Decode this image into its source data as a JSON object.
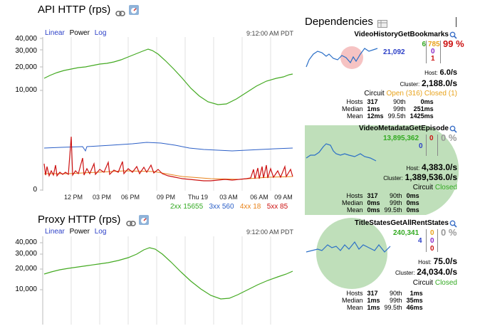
{
  "api": {
    "title": "API HTTP (rps)",
    "toggles": [
      "Linear",
      "Power",
      "Log"
    ],
    "timestamp": "9:12:00 AM PDT",
    "yticks": [
      "40,000",
      "30,000",
      "20,000",
      "10,000",
      "0"
    ],
    "xticks": [
      "12 PM",
      "03 PM",
      "06 PM",
      "09 PM",
      "Thu 19",
      "03 AM",
      "06 AM",
      "09 AM"
    ],
    "legend": [
      {
        "label": "2xx",
        "value": "15655",
        "color": "#33aa22"
      },
      {
        "label": "3xx",
        "value": "560",
        "color": "#2b5fc7"
      },
      {
        "label": "4xx",
        "value": "18",
        "color": "#e8831a"
      },
      {
        "label": "5xx",
        "value": "85",
        "color": "#cc1111"
      }
    ]
  },
  "proxy": {
    "title": "Proxy HTTP (rps)",
    "toggles": [
      "Linear",
      "Power",
      "Log"
    ],
    "timestamp": "9:12:00 AM PDT",
    "yticks": [
      "40,000",
      "30,000",
      "20,000",
      "10,000"
    ]
  },
  "deps": {
    "title": "Dependencies",
    "items": [
      {
        "name": "VideoHistoryGetBookmarks",
        "success": "21,092",
        "c1": "6",
        "c2": "785",
        "c3": "0",
        "c4": "1",
        "percent": "99 %",
        "host": "6.0/s",
        "cluster": "2,188.0/s",
        "circuit_label": "Circuit",
        "circuit": "Open (316) Closed (1)",
        "circuit_color": "#e8a21a",
        "hosts_label": "Hosts",
        "hosts": "317",
        "median_label": "Median",
        "median": "1ms",
        "mean_label": "Mean",
        "mean": "12ms",
        "p90_label": "90th",
        "p90": "0ms",
        "p99_label": "99th",
        "p99": "251ms",
        "p995_label": "99.5th",
        "p995": "1425ms"
      },
      {
        "name": "VideoMetadataGetEpisode",
        "success": "13,895,362",
        "c1": "0",
        "c2": "0",
        "percent": "0 %",
        "host": "4,383.0/s",
        "cluster": "1,389,536.0/s",
        "circuit_label": "Circuit",
        "circuit": "Closed",
        "circuit_color": "#33aa22",
        "hosts_label": "Hosts",
        "hosts": "317",
        "median_label": "Median",
        "median": "0ms",
        "mean_label": "Mean",
        "mean": "0ms",
        "p90_label": "90th",
        "p90": "0ms",
        "p99_label": "99th",
        "p99": "0ms",
        "p995_label": "99.5th",
        "p995": "0ms"
      },
      {
        "name": "TitleStatesGetAllRentStates",
        "success": "240,341",
        "c1": "4",
        "c2": "0",
        "c3": "0",
        "c4": "0",
        "percent": "0 %",
        "host": "75.0/s",
        "cluster": "24,034.0/s",
        "circuit_label": "Circuit",
        "circuit": "Closed",
        "circuit_color": "#33aa22",
        "hosts_label": "Hosts",
        "hosts": "317",
        "median_label": "Median",
        "median": "1ms",
        "mean_label": "Mean",
        "mean": "1ms",
        "p90_label": "90th",
        "p90": "1ms",
        "p99_label": "99th",
        "p99": "35ms",
        "p995_label": "99.5th",
        "p995": "46ms"
      }
    ],
    "labels": {
      "host": "Host:",
      "cluster": "Cluster:"
    }
  }
}
